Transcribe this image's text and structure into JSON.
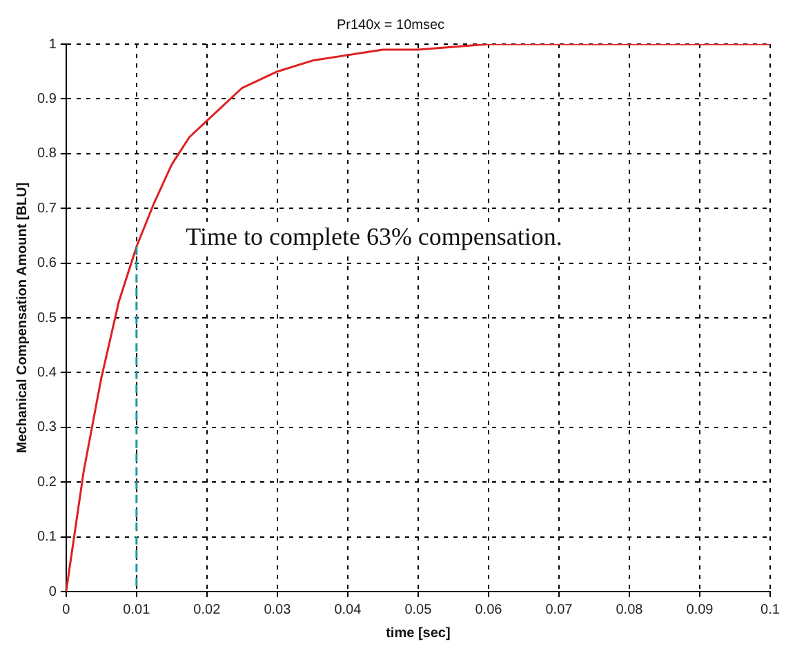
{
  "chart_data": {
    "type": "line",
    "title": "Pr140x = 10msec",
    "xlabel": "time [sec]",
    "ylabel": "Mechanical Compensation Amount [BLU]",
    "annotations": [
      "Time to complete 63% compensation."
    ],
    "xlim": [
      0,
      0.1
    ],
    "xticks": [
      0,
      0.01,
      0.02,
      0.03,
      0.04,
      0.05,
      0.06,
      0.07,
      0.08,
      0.09,
      0.1
    ],
    "ylim": [
      0,
      1
    ],
    "yticks": [
      0,
      0.1,
      0.2,
      0.3,
      0.4,
      0.5,
      0.6,
      0.7,
      0.8,
      0.9,
      1
    ],
    "grid": true,
    "legend": false,
    "marker": "none",
    "series": [
      {
        "color": "#e02020",
        "line_style": "solid",
        "x": [
          0,
          0.0025,
          0.005,
          0.0075,
          0.01,
          0.0125,
          0.015,
          0.0175,
          0.02,
          0.025,
          0.03,
          0.035,
          0.04,
          0.045,
          0.05,
          0.06,
          0.07,
          0.08,
          0.09,
          0.1
        ],
        "values": [
          0,
          0.22,
          0.39,
          0.53,
          0.63,
          0.71,
          0.78,
          0.83,
          0.86,
          0.92,
          0.95,
          0.97,
          0.98,
          0.99,
          0.99,
          1,
          1,
          1,
          1,
          1
        ]
      },
      {
        "color": "#1a9a9a",
        "line_style": "dashed",
        "x": [
          0.01,
          0.01
        ],
        "values": [
          0.63,
          0
        ]
      }
    ]
  }
}
